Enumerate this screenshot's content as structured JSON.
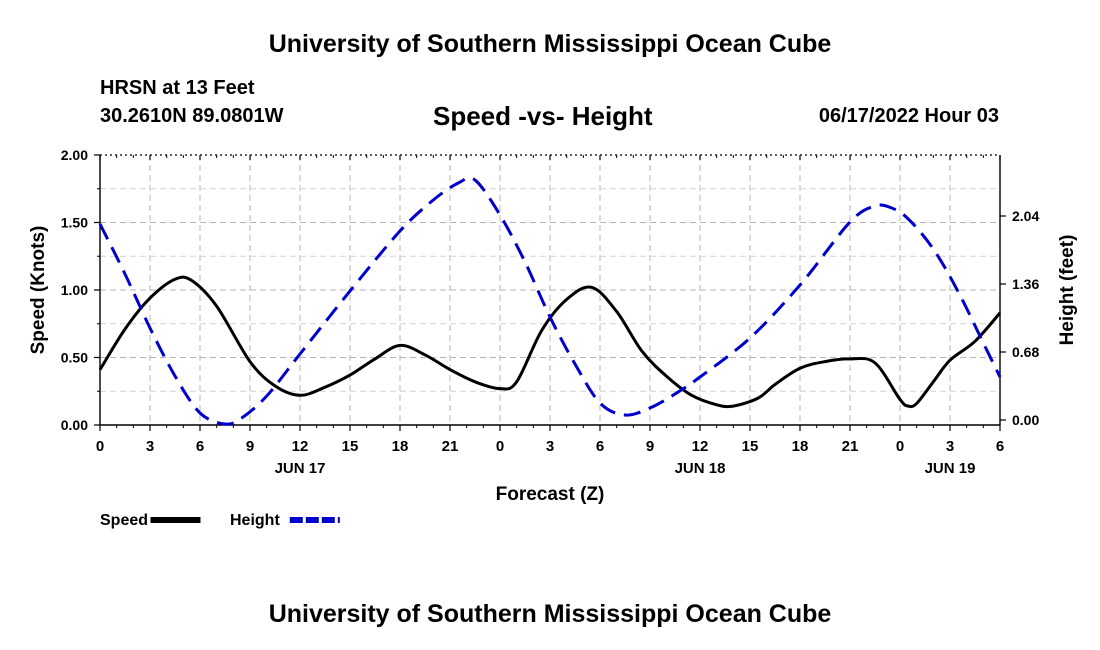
{
  "header": {
    "title": "University of Southern Mississippi Ocean Cube",
    "station": "HRSN at 13 Feet",
    "coords": "30.2610N  89.0801W",
    "subtitle": "Speed -vs- Height",
    "timestamp": "06/17/2022 Hour 03"
  },
  "footer": {
    "title": "University of Southern Mississippi Ocean Cube"
  },
  "chart_data": {
    "type": "line",
    "title": "Speed -vs- Height",
    "xlabel": "Forecast (Z)",
    "ylabel": "Speed (Knots)",
    "y2label": "Height (feet)",
    "xlim": [
      0,
      54
    ],
    "ylim": [
      0,
      2.0
    ],
    "y2lim": [
      -0.05,
      2.65
    ],
    "x_tick_labels": [
      "0",
      "3",
      "6",
      "9",
      "12",
      "15",
      "18",
      "21",
      "0",
      "3",
      "6",
      "9",
      "12",
      "15",
      "18",
      "21",
      "0",
      "3",
      "6"
    ],
    "y_ticks": [
      0,
      0.5,
      1.0,
      1.5,
      2.0
    ],
    "y_tick_labels": [
      "0.00",
      "0.50",
      "1.00",
      "1.50",
      "2.00"
    ],
    "y2_ticks": [
      0,
      0.68,
      1.36,
      2.04
    ],
    "y2_tick_labels": [
      "0.00",
      "0.68",
      "1.36",
      "2.04"
    ],
    "day_labels": [
      {
        "x": 12,
        "label": "JUN 17"
      },
      {
        "x": 36,
        "label": "JUN 18"
      },
      {
        "x": 51,
        "label": "JUN 19"
      }
    ],
    "grid": true,
    "series": [
      {
        "name": "Speed",
        "axis": "left",
        "color": "#000000",
        "dash": "solid",
        "x": [
          0,
          1.5,
          3,
          4.5,
          5.5,
          7,
          9,
          10.5,
          12,
          13.5,
          15,
          16.5,
          18,
          19.5,
          21,
          22.5,
          24,
          25,
          26.5,
          28,
          29.5,
          31,
          32.5,
          34,
          35.5,
          37,
          38,
          39.5,
          40.5,
          42,
          43.5,
          45,
          46.5,
          48,
          48.5,
          49,
          50,
          51,
          52.5,
          54
        ],
        "y": [
          0.41,
          0.71,
          0.94,
          1.08,
          1.07,
          0.88,
          0.47,
          0.29,
          0.22,
          0.28,
          0.37,
          0.49,
          0.59,
          0.52,
          0.41,
          0.32,
          0.27,
          0.32,
          0.7,
          0.93,
          1.02,
          0.84,
          0.55,
          0.36,
          0.22,
          0.15,
          0.14,
          0.2,
          0.3,
          0.42,
          0.47,
          0.49,
          0.46,
          0.19,
          0.14,
          0.16,
          0.32,
          0.48,
          0.62,
          0.83
        ]
      },
      {
        "name": "Height",
        "axis": "right",
        "color": "#0000cc",
        "dash": "dashed",
        "x": [
          0,
          1.5,
          3,
          4.5,
          6,
          7.5,
          8.5,
          10,
          12,
          15,
          18,
          20,
          21.5,
          22.5,
          24,
          25.5,
          27,
          28.5,
          30,
          31.5,
          33,
          34.5,
          36,
          39,
          42,
          45,
          46.5,
          47.5,
          48.5,
          50,
          51.5,
          53,
          54
        ],
        "y": [
          1.96,
          1.46,
          0.92,
          0.44,
          0.07,
          -0.04,
          0.02,
          0.24,
          0.66,
          1.29,
          1.89,
          2.2,
          2.37,
          2.4,
          2.05,
          1.58,
          1.03,
          0.56,
          0.17,
          0.05,
          0.12,
          0.26,
          0.43,
          0.82,
          1.35,
          1.98,
          2.14,
          2.12,
          2.01,
          1.71,
          1.28,
          0.77,
          0.43
        ]
      }
    ],
    "legend": [
      {
        "label": "Speed",
        "color": "#000000",
        "dash": "solid"
      },
      {
        "label": "Height",
        "color": "#0000cc",
        "dash": "dashed"
      }
    ]
  }
}
